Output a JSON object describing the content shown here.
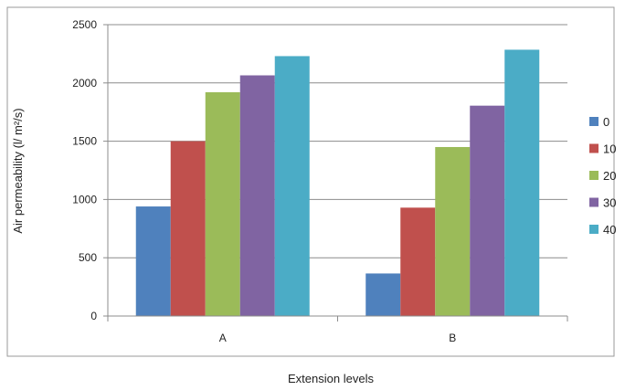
{
  "chart_data": {
    "type": "bar",
    "title": "",
    "xlabel": "Extension levels",
    "ylabel": "Air permeability (l/ m²/s)",
    "categories": [
      "A",
      "B"
    ],
    "ylim": [
      0,
      2500
    ],
    "yticks": [
      0,
      500,
      1000,
      1500,
      2000,
      2500
    ],
    "grid": true,
    "legend_position": "right",
    "series": [
      {
        "name": "0",
        "color": "#4F81BD",
        "values": [
          940,
          365
        ]
      },
      {
        "name": "10",
        "color": "#C0504D",
        "values": [
          1500,
          930
        ]
      },
      {
        "name": "20",
        "color": "#9BBB59",
        "values": [
          1920,
          1450
        ]
      },
      {
        "name": "30",
        "color": "#8064A2",
        "values": [
          2065,
          1805
        ]
      },
      {
        "name": "40",
        "color": "#4BACC6",
        "values": [
          2230,
          2285
        ]
      }
    ]
  }
}
